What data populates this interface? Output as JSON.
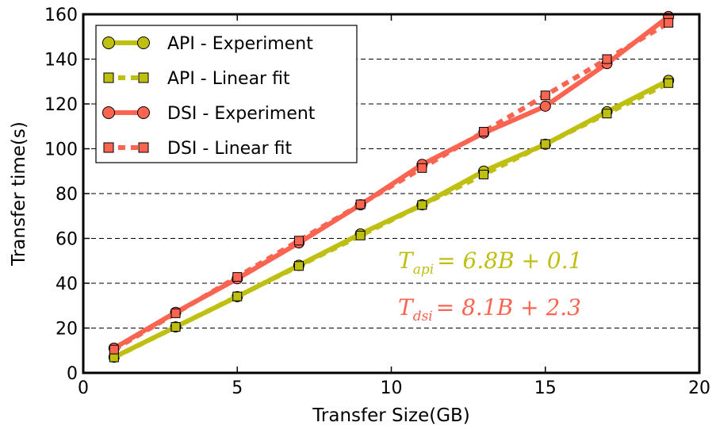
{
  "chart_data": {
    "type": "line",
    "xlabel": "Transfer Size(GB)",
    "ylabel": "Transfer time(s)",
    "xlim": [
      0,
      20
    ],
    "ylim": [
      0,
      160
    ],
    "xticks": [
      "0",
      "5",
      "10",
      "15",
      "20"
    ],
    "yticks": [
      "0",
      "20",
      "40",
      "60",
      "80",
      "100",
      "120",
      "140",
      "160"
    ],
    "grid": "horizontal dashed",
    "legend_position": "top-left",
    "x": [
      1,
      3,
      5,
      7,
      9,
      11,
      13,
      15,
      17,
      19
    ],
    "series": [
      {
        "name": "API - Experiment",
        "style": "solid",
        "marker": "circle",
        "color": "#bfbf12",
        "values": [
          7,
          20.5,
          34,
          48,
          62,
          75,
          90,
          102,
          116.5,
          130.5
        ]
      },
      {
        "name": "API - Linear fit",
        "style": "dashed",
        "marker": "square",
        "color": "#bfbf12",
        "values": [
          6.9,
          20.5,
          34.1,
          47.7,
          61.3,
          74.9,
          88.5,
          102.1,
          115.7,
          129.3
        ]
      },
      {
        "name": "DSI - Experiment",
        "style": "solid",
        "marker": "circle",
        "color": "#fa6450",
        "values": [
          11,
          27,
          42,
          58,
          75,
          93,
          107,
          119,
          138,
          159
        ]
      },
      {
        "name": "DSI - Linear fit",
        "style": "dashed",
        "marker": "square",
        "color": "#fa6450",
        "values": [
          10.4,
          26.6,
          42.8,
          59.0,
          75.2,
          91.4,
          107.6,
          123.8,
          140.0,
          156.2
        ]
      }
    ],
    "annotations": {
      "api": {
        "var": "T",
        "sub": "api",
        "rest": "= 6.8B + 0.1",
        "color": "#bfbf12"
      },
      "dsi": {
        "var": "T",
        "sub": "dsi",
        "rest": "= 8.1B + 2.3",
        "color": "#fa6450"
      }
    }
  }
}
